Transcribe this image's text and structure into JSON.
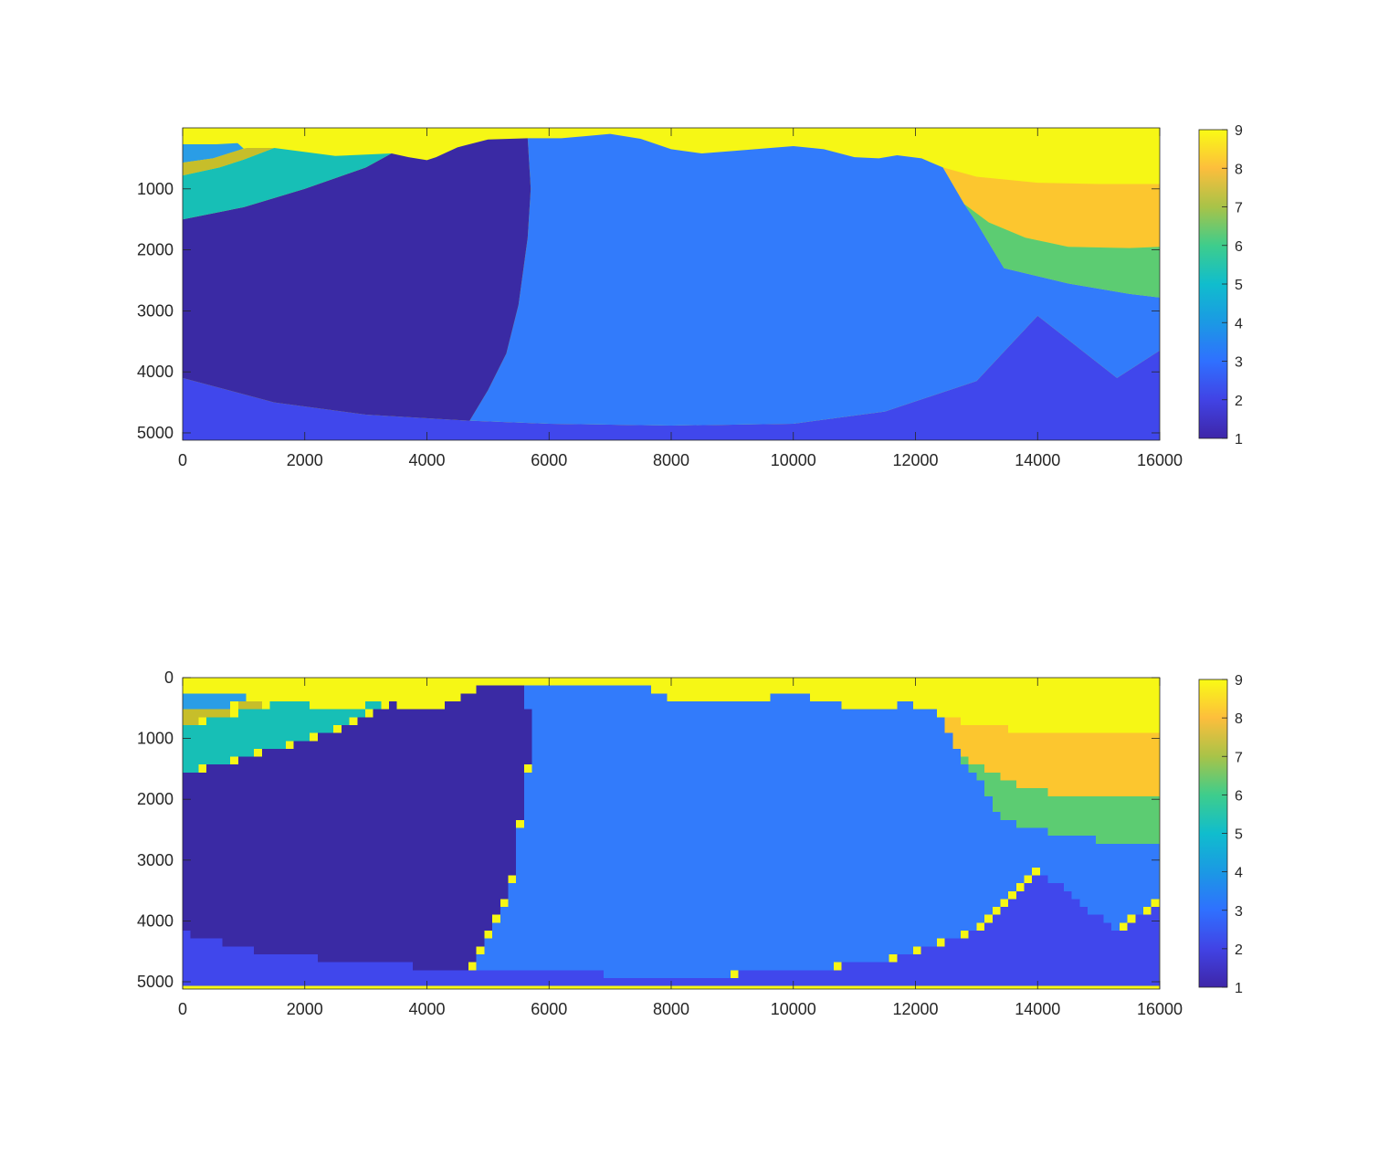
{
  "figure": {
    "colormap": [
      "#3e26a8",
      "#4143e5",
      "#2f70ff",
      "#1b99e4",
      "#10bdcd",
      "#3ecd8c",
      "#a8c348",
      "#fdbe3c",
      "#f9fb15"
    ],
    "layer_colors": {
      "1": "#3a2aa4",
      "2": "#4047ec",
      "3": "#327bfb",
      "4": "#2a9de6",
      "5": "#17bfb6",
      "6": "#5ccc72",
      "7": "#c7be2a",
      "8": "#fcc62f",
      "9": "#f6f715"
    }
  },
  "chart_data": [
    {
      "type": "heatmap",
      "name": "top",
      "style": "smooth",
      "title": "",
      "xlabel": "",
      "ylabel": "",
      "xlim": [
        0,
        16000
      ],
      "ylim": [
        0,
        5120
      ],
      "y_reversed": true,
      "x_ticks": [
        0,
        2000,
        4000,
        6000,
        8000,
        10000,
        12000,
        14000,
        16000
      ],
      "y_ticks": [
        1000,
        2000,
        3000,
        4000,
        5000
      ],
      "colorbar": {
        "min": 1,
        "max": 9,
        "ticks": [
          1,
          2,
          3,
          4,
          5,
          6,
          7,
          8,
          9
        ]
      },
      "regions": [
        {
          "value": 2,
          "polygon": [
            [
              0,
              4100
            ],
            [
              1500,
              4500
            ],
            [
              3000,
              4700
            ],
            [
              4700,
              4800
            ],
            [
              6000,
              4850
            ],
            [
              8000,
              4880
            ],
            [
              10000,
              4850
            ],
            [
              11500,
              4650
            ],
            [
              13000,
              4150
            ],
            [
              14000,
              3080
            ],
            [
              15300,
              4100
            ],
            [
              16000,
              3650
            ],
            [
              16000,
              5120
            ],
            [
              0,
              5120
            ]
          ]
        },
        {
          "value": 3,
          "polygon": [
            [
              5650,
              170
            ],
            [
              6200,
              170
            ],
            [
              7000,
              100
            ],
            [
              7500,
              180
            ],
            [
              8000,
              350
            ],
            [
              8500,
              420
            ],
            [
              9000,
              380
            ],
            [
              10000,
              300
            ],
            [
              10500,
              350
            ],
            [
              11000,
              480
            ],
            [
              11400,
              500
            ],
            [
              11700,
              450
            ],
            [
              12100,
              500
            ],
            [
              12450,
              650
            ],
            [
              12800,
              1250
            ],
            [
              13000,
              1550
            ],
            [
              13450,
              2300
            ],
            [
              14500,
              2550
            ],
            [
              15500,
              2720
            ],
            [
              16000,
              2780
            ],
            [
              16000,
              3650
            ],
            [
              15300,
              4100
            ],
            [
              14000,
              3080
            ],
            [
              13000,
              4150
            ],
            [
              11500,
              4650
            ],
            [
              10000,
              4850
            ],
            [
              8000,
              4880
            ],
            [
              6000,
              4850
            ],
            [
              4700,
              4800
            ],
            [
              5000,
              4300
            ],
            [
              5300,
              3700
            ],
            [
              5500,
              2900
            ],
            [
              5650,
              1800
            ],
            [
              5700,
              1000
            ]
          ]
        },
        {
          "value": 1,
          "polygon": [
            [
              0,
              1500
            ],
            [
              1000,
              1300
            ],
            [
              2000,
              1000
            ],
            [
              3000,
              650
            ],
            [
              3420,
              420
            ],
            [
              3700,
              480
            ],
            [
              4000,
              530
            ],
            [
              4150,
              480
            ],
            [
              4500,
              320
            ],
            [
              5000,
              190
            ],
            [
              5650,
              170
            ],
            [
              5700,
              1000
            ],
            [
              5650,
              1800
            ],
            [
              5500,
              2900
            ],
            [
              5300,
              3700
            ],
            [
              5000,
              4300
            ],
            [
              4700,
              4800
            ],
            [
              3000,
              4700
            ],
            [
              1500,
              4500
            ],
            [
              0,
              4100
            ]
          ]
        },
        {
          "value": 5,
          "polygon": [
            [
              0,
              780
            ],
            [
              600,
              650
            ],
            [
              1000,
              520
            ],
            [
              1500,
              330
            ],
            [
              2500,
              460
            ],
            [
              3420,
              420
            ],
            [
              3000,
              650
            ],
            [
              2000,
              1000
            ],
            [
              1000,
              1300
            ],
            [
              0,
              1500
            ]
          ]
        },
        {
          "value": 4,
          "polygon": [
            [
              0,
              270
            ],
            [
              550,
              270
            ],
            [
              900,
              250
            ],
            [
              1000,
              340
            ],
            [
              500,
              500
            ],
            [
              0,
              570
            ]
          ]
        },
        {
          "value": 7,
          "polygon": [
            [
              0,
              570
            ],
            [
              500,
              500
            ],
            [
              1000,
              340
            ],
            [
              1050,
              330
            ],
            [
              1500,
              330
            ],
            [
              1000,
              520
            ],
            [
              600,
              650
            ],
            [
              0,
              780
            ]
          ]
        },
        {
          "value": 8,
          "polygon": [
            [
              12450,
              650
            ],
            [
              13000,
              800
            ],
            [
              14000,
              900
            ],
            [
              15000,
              920
            ],
            [
              16000,
              920
            ],
            [
              16000,
              1950
            ],
            [
              15500,
              1970
            ],
            [
              14500,
              1950
            ],
            [
              13800,
              1800
            ],
            [
              13200,
              1550
            ],
            [
              12800,
              1250
            ]
          ]
        },
        {
          "value": 6,
          "polygon": [
            [
              12800,
              1250
            ],
            [
              13200,
              1550
            ],
            [
              13800,
              1800
            ],
            [
              14500,
              1950
            ],
            [
              15500,
              1970
            ],
            [
              16000,
              1950
            ],
            [
              16000,
              2780
            ],
            [
              15500,
              2720
            ],
            [
              14500,
              2550
            ],
            [
              13450,
              2300
            ],
            [
              13000,
              1550
            ]
          ]
        }
      ]
    },
    {
      "type": "heatmap",
      "name": "bottom",
      "style": "blocky",
      "title": "",
      "xlabel": "",
      "ylabel": "",
      "xlim": [
        0,
        16000
      ],
      "ylim": [
        0,
        5120
      ],
      "y_reversed": true,
      "x_ticks": [
        0,
        2000,
        4000,
        6000,
        8000,
        10000,
        12000,
        14000,
        16000
      ],
      "y_ticks": [
        0,
        1000,
        2000,
        3000,
        4000,
        5000
      ],
      "colorbar": {
        "min": 1,
        "max": 9,
        "ticks": [
          1,
          2,
          3,
          4,
          5,
          6,
          7,
          8,
          9
        ]
      },
      "regions": [
        {
          "value": 2,
          "polygon": [
            [
              0,
              4100
            ],
            [
              1500,
              4500
            ],
            [
              3000,
              4700
            ],
            [
              4700,
              4800
            ],
            [
              6000,
              4850
            ],
            [
              8000,
              4880
            ],
            [
              10000,
              4850
            ],
            [
              11500,
              4650
            ],
            [
              13000,
              4150
            ],
            [
              14000,
              3080
            ],
            [
              15300,
              4100
            ],
            [
              16000,
              3650
            ],
            [
              16000,
              5120
            ],
            [
              0,
              5120
            ]
          ]
        },
        {
          "value": 3,
          "polygon": [
            [
              5650,
              170
            ],
            [
              6200,
              170
            ],
            [
              7000,
              100
            ],
            [
              7500,
              180
            ],
            [
              8000,
              350
            ],
            [
              8500,
              420
            ],
            [
              9000,
              380
            ],
            [
              10000,
              300
            ],
            [
              10500,
              350
            ],
            [
              11000,
              480
            ],
            [
              11400,
              500
            ],
            [
              11700,
              450
            ],
            [
              12100,
              500
            ],
            [
              12450,
              650
            ],
            [
              12800,
              1250
            ],
            [
              13000,
              1550
            ],
            [
              13450,
              2300
            ],
            [
              14500,
              2550
            ],
            [
              15500,
              2720
            ],
            [
              16000,
              2780
            ],
            [
              16000,
              3650
            ],
            [
              15300,
              4100
            ],
            [
              14000,
              3080
            ],
            [
              13000,
              4150
            ],
            [
              11500,
              4650
            ],
            [
              10000,
              4850
            ],
            [
              8000,
              4880
            ],
            [
              6000,
              4850
            ],
            [
              4700,
              4800
            ],
            [
              5000,
              4300
            ],
            [
              5300,
              3700
            ],
            [
              5500,
              2900
            ],
            [
              5650,
              1800
            ],
            [
              5700,
              1000
            ]
          ]
        },
        {
          "value": 1,
          "polygon": [
            [
              0,
              1500
            ],
            [
              1000,
              1300
            ],
            [
              2000,
              1000
            ],
            [
              3000,
              650
            ],
            [
              3420,
              420
            ],
            [
              3700,
              480
            ],
            [
              4000,
              530
            ],
            [
              4150,
              480
            ],
            [
              4500,
              320
            ],
            [
              5000,
              190
            ],
            [
              5650,
              170
            ],
            [
              5700,
              1000
            ],
            [
              5650,
              1800
            ],
            [
              5500,
              2900
            ],
            [
              5300,
              3700
            ],
            [
              5000,
              4300
            ],
            [
              4700,
              4800
            ],
            [
              3000,
              4700
            ],
            [
              1500,
              4500
            ],
            [
              0,
              4100
            ]
          ]
        },
        {
          "value": 5,
          "polygon": [
            [
              0,
              780
            ],
            [
              600,
              650
            ],
            [
              1000,
              520
            ],
            [
              1500,
              330
            ],
            [
              2500,
              460
            ],
            [
              3420,
              420
            ],
            [
              3000,
              650
            ],
            [
              2000,
              1000
            ],
            [
              1000,
              1300
            ],
            [
              0,
              1500
            ]
          ]
        },
        {
          "value": 4,
          "polygon": [
            [
              0,
              270
            ],
            [
              550,
              270
            ],
            [
              900,
              250
            ],
            [
              1000,
              340
            ],
            [
              500,
              500
            ],
            [
              0,
              570
            ]
          ]
        },
        {
          "value": 7,
          "polygon": [
            [
              0,
              570
            ],
            [
              500,
              500
            ],
            [
              1000,
              340
            ],
            [
              1050,
              330
            ],
            [
              1500,
              330
            ],
            [
              1000,
              520
            ],
            [
              600,
              650
            ],
            [
              0,
              780
            ]
          ]
        },
        {
          "value": 8,
          "polygon": [
            [
              12450,
              650
            ],
            [
              13000,
              800
            ],
            [
              14000,
              900
            ],
            [
              15000,
              920
            ],
            [
              16000,
              920
            ],
            [
              16000,
              1950
            ],
            [
              15500,
              1970
            ],
            [
              14500,
              1950
            ],
            [
              13800,
              1800
            ],
            [
              13200,
              1550
            ],
            [
              12800,
              1250
            ]
          ]
        },
        {
          "value": 6,
          "polygon": [
            [
              12800,
              1250
            ],
            [
              13200,
              1550
            ],
            [
              13800,
              1800
            ],
            [
              14500,
              1950
            ],
            [
              15500,
              1970
            ],
            [
              16000,
              1950
            ],
            [
              16000,
              2780
            ],
            [
              15500,
              2720
            ],
            [
              14500,
              2550
            ],
            [
              13450,
              2300
            ],
            [
              13000,
              1550
            ]
          ]
        }
      ]
    }
  ]
}
